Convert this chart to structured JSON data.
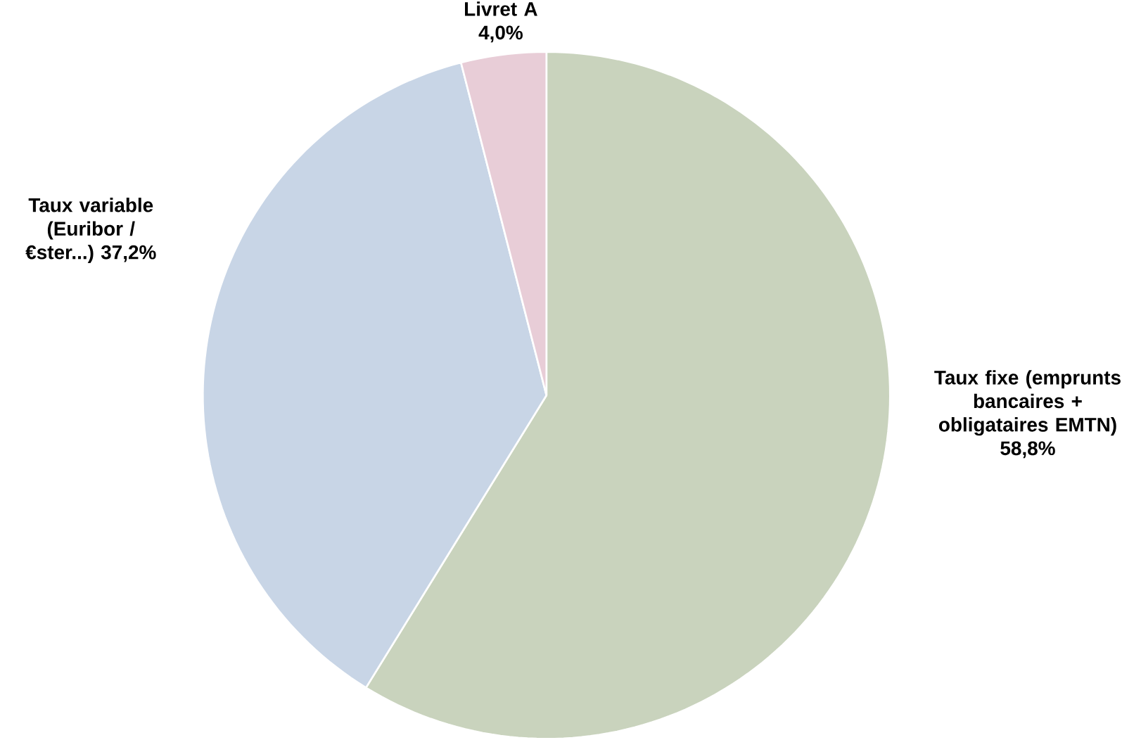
{
  "chart_data": {
    "type": "pie",
    "categories": [
      "Taux fixe (emprunts bancaires + obligataires EMTN)",
      "Taux variable (Euribor / €ster...)",
      "Livret A"
    ],
    "values": [
      58.8,
      37.2,
      4.0
    ],
    "value_labels": [
      "58,8%",
      "37,2%",
      "4,0%"
    ],
    "colors": [
      "#c9d3bd",
      "#c8d5e6",
      "#e8cdd7"
    ]
  }
}
